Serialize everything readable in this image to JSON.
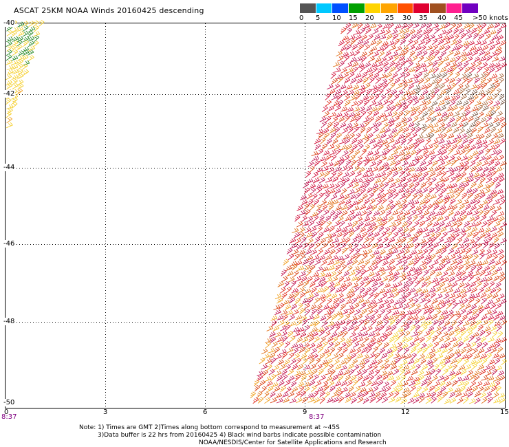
{
  "title": "ASCAT 25KM NOAA Winds 20160425 descending",
  "legend": {
    "colors": [
      "#555555",
      "#00c8ff",
      "#0050ff",
      "#00a000",
      "#ffd400",
      "#ffa500",
      "#ff5000",
      "#e00030",
      "#a05020",
      "#ff2090",
      "#7000c0"
    ],
    "labels": [
      "0",
      "5",
      "10",
      "15",
      "20",
      "25",
      "30",
      "35",
      "40",
      "45",
      ">50 knots"
    ]
  },
  "y_axis": {
    "ticks": [
      "-40",
      "-42",
      "-44",
      "-46",
      "-48",
      "-50"
    ]
  },
  "x_axis": {
    "ticks": [
      "0",
      "3",
      "6",
      "9",
      "12",
      "15"
    ]
  },
  "times": [
    "8:37",
    "8:37"
  ],
  "notes": [
    "Note: 1) Times are GMT 2)Times along bottom correspond to measurement at ~45S",
    "3)Data buffer is 22 hrs from 20160425 4) Black wind barbs indicate possible contamination"
  ],
  "credit": "NOAA/NESDIS/Center for Satellite Applications and Research",
  "wind_palette": [
    "#d0103a",
    "#c01450",
    "#e03020",
    "#d84010",
    "#e07018",
    "#f0a020",
    "#f5d030",
    "#a86a40",
    "#7a5a48",
    "#404040",
    "#2a8a2a"
  ]
}
